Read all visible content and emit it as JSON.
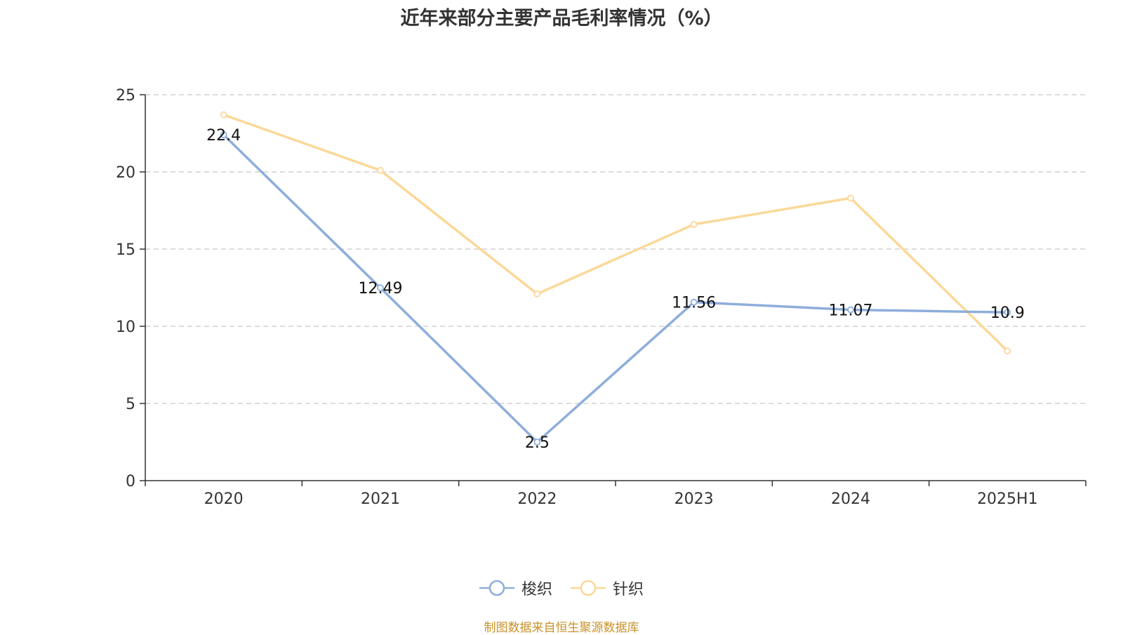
{
  "title": "近年来部分主要产品毛利率情况（%）",
  "source": "制图数据来自恒生聚源数据库",
  "colors": {
    "series_1": "#8eaedb",
    "series_2": "#fbd898",
    "axis": "#333333",
    "grid": "#c8c8c8"
  },
  "chart_data": {
    "type": "line",
    "title": "近年来部分主要产品毛利率情况（%）",
    "xlabel": "",
    "ylabel": "",
    "categories": [
      "2020",
      "2021",
      "2022",
      "2023",
      "2024",
      "2025H1"
    ],
    "ylim": [
      0,
      25
    ],
    "yticks": [
      0,
      5,
      10,
      15,
      20,
      25
    ],
    "grid": true,
    "legend": "bottom-center",
    "series": [
      {
        "name": "梭织",
        "values": [
          22.4,
          12.49,
          2.5,
          11.56,
          11.07,
          10.9
        ],
        "labels": [
          "22.4",
          "12.49",
          "2.5",
          "11.56",
          "11.07",
          "10.9"
        ],
        "show_labels": true
      },
      {
        "name": "针织",
        "values": [
          23.7,
          20.1,
          12.1,
          16.6,
          18.3,
          8.4
        ],
        "show_labels": false
      }
    ]
  }
}
